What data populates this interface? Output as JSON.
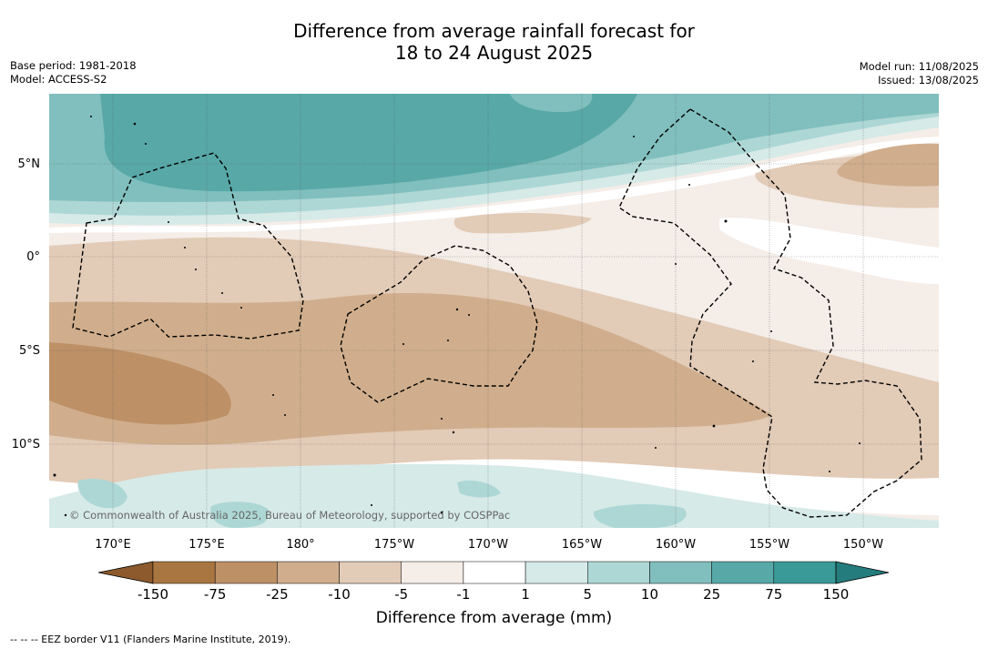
{
  "title": {
    "line1": "Difference from average rainfall forecast for",
    "line2": "18 to 24 August 2025"
  },
  "info_left": {
    "base_period": "Base period: 1981-2018",
    "model": "Model: ACCESS-S2"
  },
  "info_right": {
    "model_run": "Model run: 11/08/2025",
    "issued": "Issued: 13/08/2025"
  },
  "map": {
    "lat_labels": [
      "5°N",
      "0°",
      "5°S",
      "10°S"
    ],
    "lon_labels": [
      "170°E",
      "175°E",
      "180°",
      "175°W",
      "170°W",
      "165°W",
      "160°W",
      "155°W",
      "150°W"
    ],
    "copyright": "© Commonwealth of Australia 2025, Bureau of Meteorology, supported by COSPPac"
  },
  "colorbar": {
    "ticks": [
      "-150",
      "-75",
      "-25",
      "-10",
      "-5",
      "-1",
      "1",
      "5",
      "10",
      "25",
      "75",
      "150"
    ],
    "colors": [
      "#8c5a2c",
      "#a97540",
      "#bd9066",
      "#d0ae8d",
      "#e2cbb7",
      "#f4ede8",
      "#ffffff",
      "#d6eae8",
      "#add7d5",
      "#80bfbd",
      "#58a8a8",
      "#3a9a98",
      "#257c7c"
    ],
    "label": "Difference from average (mm)"
  },
  "footnote": "--  --  -- EEZ border V11 (Flanders Marine Institute, 2019)."
}
